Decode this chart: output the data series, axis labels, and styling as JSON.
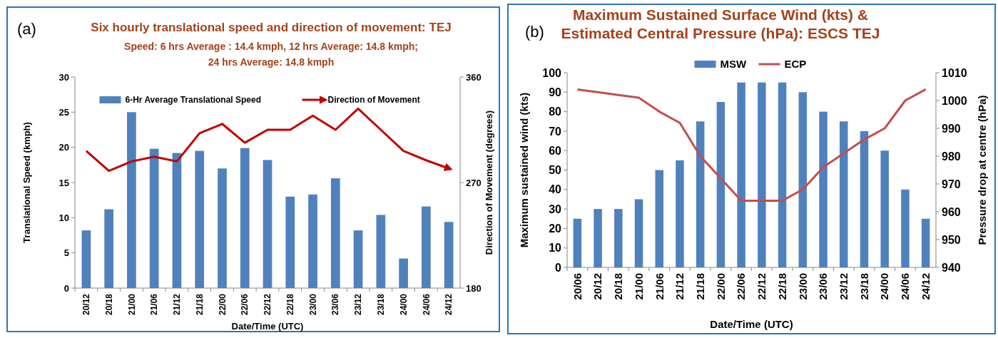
{
  "chart_data": [
    {
      "type": "bar",
      "title": "Six  hourly translational speed and direction of movement: TEJ",
      "subtitle": "Speed: 6 hrs Average : 14.4 kmph, 12 hrs Average: 14.8 kmph;\n24 hrs Average: 14.8 kmph",
      "xlabel": "Date/Time (UTC)",
      "ylabel": "Translational  Speed (kmph)",
      "y2label": "Direction of Movement (degrees)",
      "annotations": [
        "(a)"
      ],
      "categories": [
        "20/12",
        "20/18",
        "21/00",
        "21/06",
        "21/12",
        "21/18",
        "22/00",
        "22/06",
        "22/12",
        "22/18",
        "23/00",
        "23/06",
        "23/12",
        "23/18",
        "24/00",
        "24/06",
        "24/12"
      ],
      "series": [
        {
          "name": "6-Hr Average Translational Speed",
          "color": "#4f81bd",
          "values": [
            8.2,
            11.2,
            25,
            19.8,
            19.2,
            19.5,
            17,
            19.9,
            18.2,
            13,
            13.3,
            15.6,
            8.2,
            10.4,
            4.2,
            11.6,
            9.4
          ]
        },
        {
          "name": "Direction of Movement",
          "type": "line",
          "axis": "y2",
          "color": "#c00000",
          "values": [
            297,
            280,
            288,
            292,
            288,
            312,
            320,
            304,
            315,
            315,
            327,
            315,
            333,
            315,
            297,
            289,
            282
          ]
        }
      ],
      "ylim": [
        0,
        30
      ],
      "yticks": [
        0,
        5,
        10,
        15,
        20,
        25,
        30
      ],
      "y2lim": [
        180,
        360
      ],
      "y2ticks": [
        180,
        270,
        360
      ],
      "legend": "top",
      "grid": false
    },
    {
      "type": "bar",
      "title": "Maximum Sustained Surface Wind (kts)  &\nEstimated Central Pressure (hPa): ESCS TEJ",
      "xlabel": "Date/Time (UTC)",
      "ylabel": "Maximum sustained wind (kts)",
      "y2label": "Pressure drop at centre  (hPa)",
      "annotations": [
        "(b)"
      ],
      "categories": [
        "20/06",
        "20/12",
        "20/18",
        "21/00",
        "21/06",
        "21/12",
        "21/18",
        "22/00",
        "22/06",
        "22/12",
        "22/18",
        "23/00",
        "23/06",
        "23/12",
        "23/18",
        "24/00",
        "24/06",
        "24/12"
      ],
      "series": [
        {
          "name": "MSW",
          "color": "#4f81bd",
          "values": [
            25,
            30,
            30,
            35,
            50,
            55,
            75,
            85,
            95,
            95,
            95,
            90,
            80,
            75,
            70,
            60,
            40,
            25
          ]
        },
        {
          "name": "ECP",
          "type": "line",
          "axis": "y2",
          "color": "#c0504d",
          "values": [
            1004,
            1003,
            1002,
            1001,
            996,
            992,
            980,
            972,
            964,
            964,
            964,
            968,
            976,
            981,
            986,
            990,
            1000,
            1004
          ]
        }
      ],
      "ylim": [
        0,
        100
      ],
      "yticks": [
        0,
        10,
        20,
        30,
        40,
        50,
        60,
        70,
        80,
        90,
        100
      ],
      "y2lim": [
        940,
        1010
      ],
      "y2ticks": [
        940,
        950,
        960,
        970,
        980,
        990,
        1000,
        1010
      ],
      "legend": "top",
      "grid": false
    }
  ]
}
